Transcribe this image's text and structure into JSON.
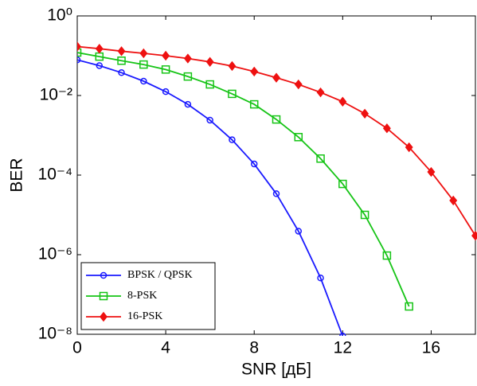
{
  "chart_data": {
    "type": "line",
    "xlabel": "SNR [дБ]",
    "ylabel": "BER",
    "xlim": [
      0,
      18
    ],
    "xticks": [
      0,
      4,
      8,
      12,
      16
    ],
    "ylim": [
      1e-08,
      1
    ],
    "log_y": true,
    "grid": false,
    "legend": "lower left",
    "yticks": [
      {
        "value": 1,
        "label": "10⁰"
      },
      {
        "value": 0.01,
        "label": "10⁻²"
      },
      {
        "value": 0.0001,
        "label": "10⁻⁴"
      },
      {
        "value": 1e-06,
        "label": "10⁻⁶"
      },
      {
        "value": 1e-08,
        "label": "10⁻⁸"
      }
    ],
    "series": [
      {
        "name": "BPSK / QPSK",
        "color": "#1a1aff",
        "marker": "circle",
        "x": [
          0,
          1,
          2,
          3,
          4,
          5,
          6,
          7,
          8,
          9,
          10,
          11,
          12
        ],
        "values": [
          0.0786,
          0.0563,
          0.0375,
          0.0229,
          0.0125,
          0.006,
          0.0024,
          0.00077,
          0.00019,
          3.4e-05,
          3.9e-06,
          2.6e-07,
          9e-09
        ]
      },
      {
        "name": "8-PSK",
        "color": "#16c416",
        "marker": "square",
        "x": [
          0,
          1,
          2,
          3,
          4,
          5,
          6,
          7,
          8,
          9,
          10,
          11,
          12,
          13,
          14,
          15
        ],
        "values": [
          0.12,
          0.095,
          0.075,
          0.06,
          0.045,
          0.03,
          0.019,
          0.011,
          0.006,
          0.0025,
          0.0009,
          0.00026,
          6e-05,
          1e-05,
          9.5e-07,
          5e-08
        ]
      },
      {
        "name": "16-PSK",
        "color": "#ee1111",
        "marker": "diamond",
        "x": [
          0,
          1,
          2,
          3,
          4,
          5,
          6,
          7,
          8,
          9,
          10,
          11,
          12,
          13,
          14,
          15,
          16,
          17,
          18
        ],
        "values": [
          0.17,
          0.15,
          0.13,
          0.115,
          0.1,
          0.085,
          0.07,
          0.055,
          0.04,
          0.028,
          0.019,
          0.012,
          0.007,
          0.0035,
          0.0015,
          0.0005,
          0.00012,
          2.3e-05,
          3e-06
        ]
      }
    ]
  }
}
